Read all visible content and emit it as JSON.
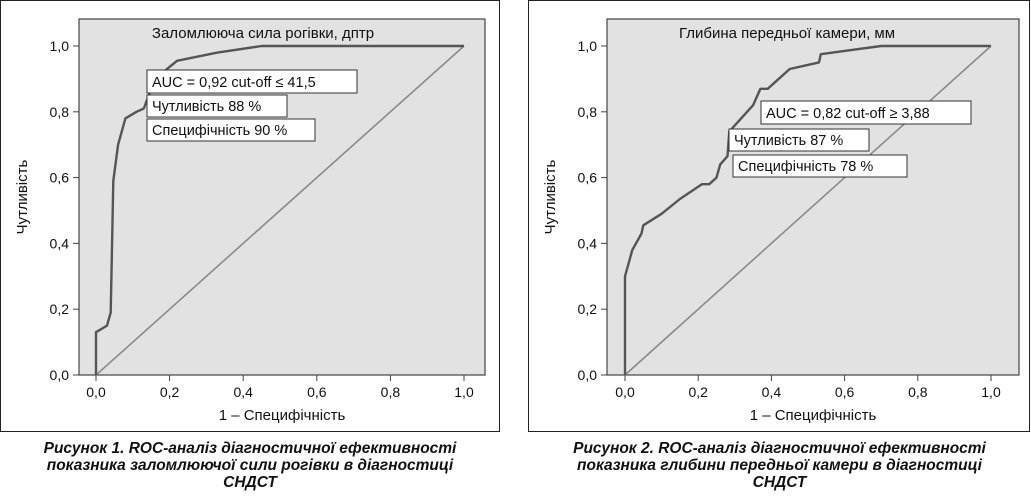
{
  "chart_data": [
    {
      "type": "line",
      "title": "Заломлююча сила рогівки, дптр",
      "xlabel": "1 – Специфічність",
      "ylabel": "Чутливість",
      "xlim": [
        0,
        1
      ],
      "ylim": [
        0,
        1
      ],
      "x_ticks": [
        "0,0",
        "0,2",
        "0,4",
        "0,6",
        "0,8",
        "1,0"
      ],
      "y_ticks": [
        "0,0",
        "0,2",
        "0,4",
        "0,6",
        "0,8",
        "1,0"
      ],
      "grid": false,
      "series": [
        {
          "x": [
            0,
            0,
            0.03,
            0.04,
            0.045,
            0.047,
            0.06,
            0.08,
            0.11,
            0.13,
            0.16,
            0.22,
            0.33,
            0.45,
            1.0
          ],
          "y": [
            0,
            0.13,
            0.15,
            0.19,
            0.48,
            0.59,
            0.7,
            0.78,
            0.8,
            0.81,
            0.9,
            0.955,
            0.98,
            1.0,
            1.0
          ],
          "color": "#555555"
        },
        {
          "x": [
            0,
            1
          ],
          "y": [
            0,
            1
          ],
          "color": "#8a8a8a"
        }
      ],
      "annotations": [
        "AUC = 0,92 cut-off ≤ 41,5",
        "Чутливість 88 %",
        "Специфічність 90 %"
      ],
      "caption": [
        "Рисунок 1. ROC-аналіз діагностичної ефективності",
        "показника заломлюючої сили рогівки в діагностиці",
        "СНДСТ"
      ]
    },
    {
      "type": "line",
      "title": "Глибина передньої камери, мм",
      "xlabel": "1 – Специфічність",
      "ylabel": "Чутливість",
      "xlim": [
        0,
        1
      ],
      "ylim": [
        0,
        1
      ],
      "x_ticks": [
        "0,0",
        "0,2",
        "0,4",
        "0,6",
        "0,8",
        "1,0"
      ],
      "y_ticks": [
        "0,0",
        "0,2",
        "0,4",
        "0,6",
        "0,8",
        "1,0"
      ],
      "grid": false,
      "series": [
        {
          "x": [
            0,
            0,
            0.02,
            0.045,
            0.05,
            0.1,
            0.15,
            0.21,
            0.23,
            0.25,
            0.26,
            0.28,
            0.285,
            0.35,
            0.37,
            0.39,
            0.45,
            0.53,
            0.535,
            0.6,
            0.7,
            1.0
          ],
          "y": [
            0,
            0.3,
            0.38,
            0.43,
            0.455,
            0.49,
            0.535,
            0.58,
            0.58,
            0.6,
            0.64,
            0.665,
            0.74,
            0.82,
            0.87,
            0.87,
            0.93,
            0.95,
            0.975,
            0.985,
            1.0,
            1.0
          ],
          "color": "#555555"
        },
        {
          "x": [
            0,
            1
          ],
          "y": [
            0,
            1
          ],
          "color": "#8a8a8a"
        }
      ],
      "annotations": [
        "AUC = 0,82 cut-off ≥ 3,88",
        "Чутливість 87 %",
        "Специфічність 78 %"
      ],
      "caption": [
        "Рисунок 2. ROC-аналіз діагностичної ефективності",
        "показника глибини передньої камери в діагностиці",
        "СНДСТ"
      ]
    }
  ]
}
